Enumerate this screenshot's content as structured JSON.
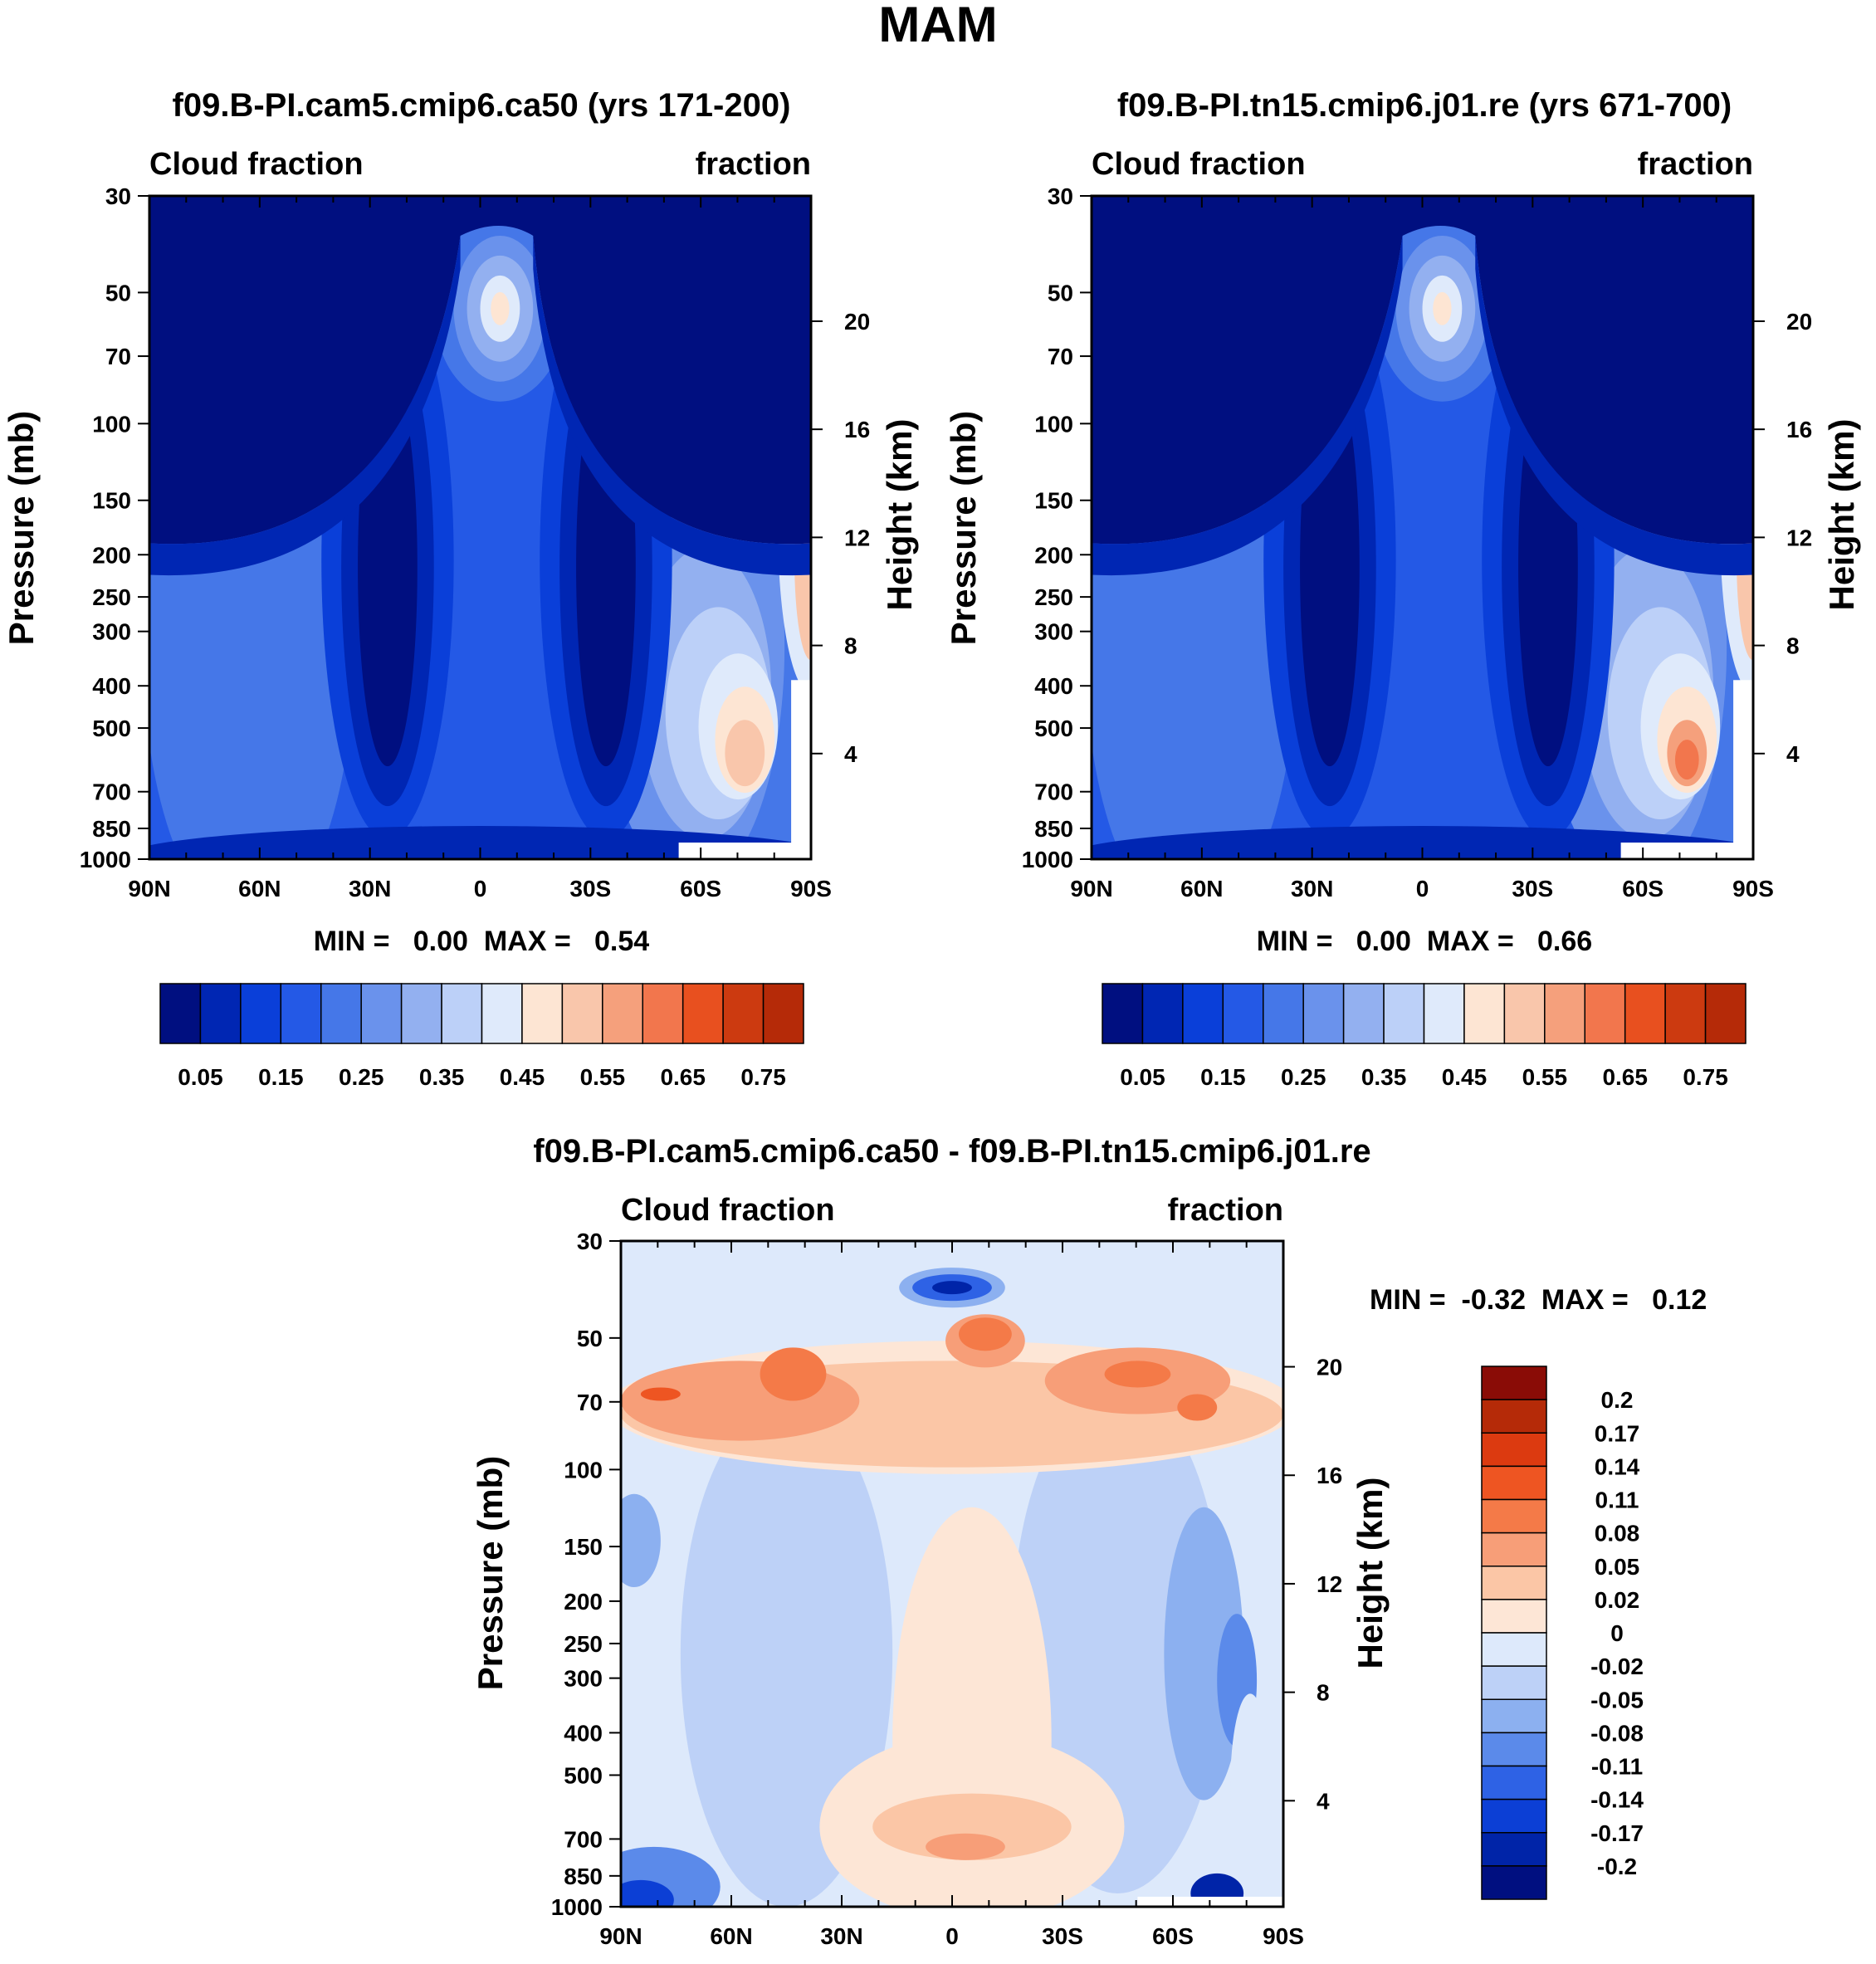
{
  "figure_title": "MAM",
  "chart_data": [
    {
      "type": "contour",
      "title": "f09.B-PI.cam5.cmip6.ca50 (yrs 171-200)",
      "left_label": "Cloud fraction",
      "right_label": "fraction",
      "ylabel": "Pressure (mb)",
      "ylabel_right": "Height (km)",
      "xticks": [
        "90N",
        "60N",
        "30N",
        "0",
        "30S",
        "60S",
        "90S"
      ],
      "yticks": [
        "30",
        "50",
        "70",
        "100",
        "150",
        "200",
        "250",
        "300",
        "400",
        "500",
        "700",
        "850",
        "1000"
      ],
      "height_ticks": [
        "20",
        "16",
        "12",
        "8",
        "4"
      ],
      "stats_text": "MIN =   0.00  MAX =   0.54",
      "min": 0.0,
      "max": 0.54,
      "colorbar": {
        "labels": [
          "0.05",
          "0.15",
          "0.25",
          "0.35",
          "0.45",
          "0.55",
          "0.65",
          "0.75"
        ],
        "levels": [
          0.05,
          0.1,
          0.15,
          0.2,
          0.25,
          0.3,
          0.35,
          0.4,
          0.45,
          0.5,
          0.55,
          0.6,
          0.65,
          0.7,
          0.75
        ],
        "colors": [
          "#000f80",
          "#0026b3",
          "#0a3fd9",
          "#2459e6",
          "#4577e8",
          "#6a92ec",
          "#93b0f0",
          "#bcd0f8",
          "#dfeafb",
          "#fde5d3",
          "#f9c6ab",
          "#f5a07c",
          "#f2764d",
          "#e8501f",
          "#cc3a10",
          "#b52a08"
        ]
      }
    },
    {
      "type": "contour",
      "title": "f09.B-PI.tn15.cmip6.j01.re (yrs 671-700)",
      "left_label": "Cloud fraction",
      "right_label": "fraction",
      "ylabel": "Pressure (mb)",
      "ylabel_right": "Height (km)",
      "xticks": [
        "90N",
        "60N",
        "30N",
        "0",
        "30S",
        "60S",
        "90S"
      ],
      "yticks": [
        "30",
        "50",
        "70",
        "100",
        "150",
        "200",
        "250",
        "300",
        "400",
        "500",
        "700",
        "850",
        "1000"
      ],
      "height_ticks": [
        "20",
        "16",
        "12",
        "8",
        "4"
      ],
      "stats_text": "MIN =   0.00  MAX =   0.66",
      "min": 0.0,
      "max": 0.66,
      "colorbar": {
        "labels": [
          "0.05",
          "0.15",
          "0.25",
          "0.35",
          "0.45",
          "0.55",
          "0.65",
          "0.75"
        ],
        "levels": [
          0.05,
          0.1,
          0.15,
          0.2,
          0.25,
          0.3,
          0.35,
          0.4,
          0.45,
          0.5,
          0.55,
          0.6,
          0.65,
          0.7,
          0.75
        ],
        "colors": [
          "#000f80",
          "#0026b3",
          "#0a3fd9",
          "#2459e6",
          "#4577e8",
          "#6a92ec",
          "#93b0f0",
          "#bcd0f8",
          "#dfeafb",
          "#fde5d3",
          "#f9c6ab",
          "#f5a07c",
          "#f2764d",
          "#e8501f",
          "#cc3a10",
          "#b52a08"
        ]
      }
    },
    {
      "type": "contour",
      "title": "f09.B-PI.cam5.cmip6.ca50 - f09.B-PI.tn15.cmip6.j01.re",
      "left_label": "Cloud fraction",
      "right_label": "fraction",
      "ylabel": "Pressure (mb)",
      "ylabel_right": "Height (km)",
      "xticks": [
        "90N",
        "60N",
        "30N",
        "0",
        "30S",
        "60S",
        "90S"
      ],
      "yticks": [
        "30",
        "50",
        "70",
        "100",
        "150",
        "200",
        "250",
        "300",
        "400",
        "500",
        "700",
        "850",
        "1000"
      ],
      "height_ticks": [
        "20",
        "16",
        "12",
        "8",
        "4"
      ],
      "stats_text": "MIN =  -0.32  MAX =   0.12",
      "min": -0.32,
      "max": 0.12,
      "colorbar": {
        "labels": [
          "0.2",
          "0.17",
          "0.14",
          "0.11",
          "0.08",
          "0.05",
          "0.02",
          "0",
          "-0.02",
          "-0.05",
          "-0.08",
          "-0.11",
          "-0.14",
          "-0.17",
          "-0.2"
        ],
        "colors": [
          "#8a0c06",
          "#b52a08",
          "#dc3a10",
          "#ee5522",
          "#f47a48",
          "#f79e78",
          "#fbc6a6",
          "#fde6d6",
          "#dde9fb",
          "#bdd1f7",
          "#8cb0f0",
          "#5b8aea",
          "#2e62e5",
          "#0c3fd5",
          "#0024a8",
          "#000f80"
        ]
      }
    }
  ]
}
